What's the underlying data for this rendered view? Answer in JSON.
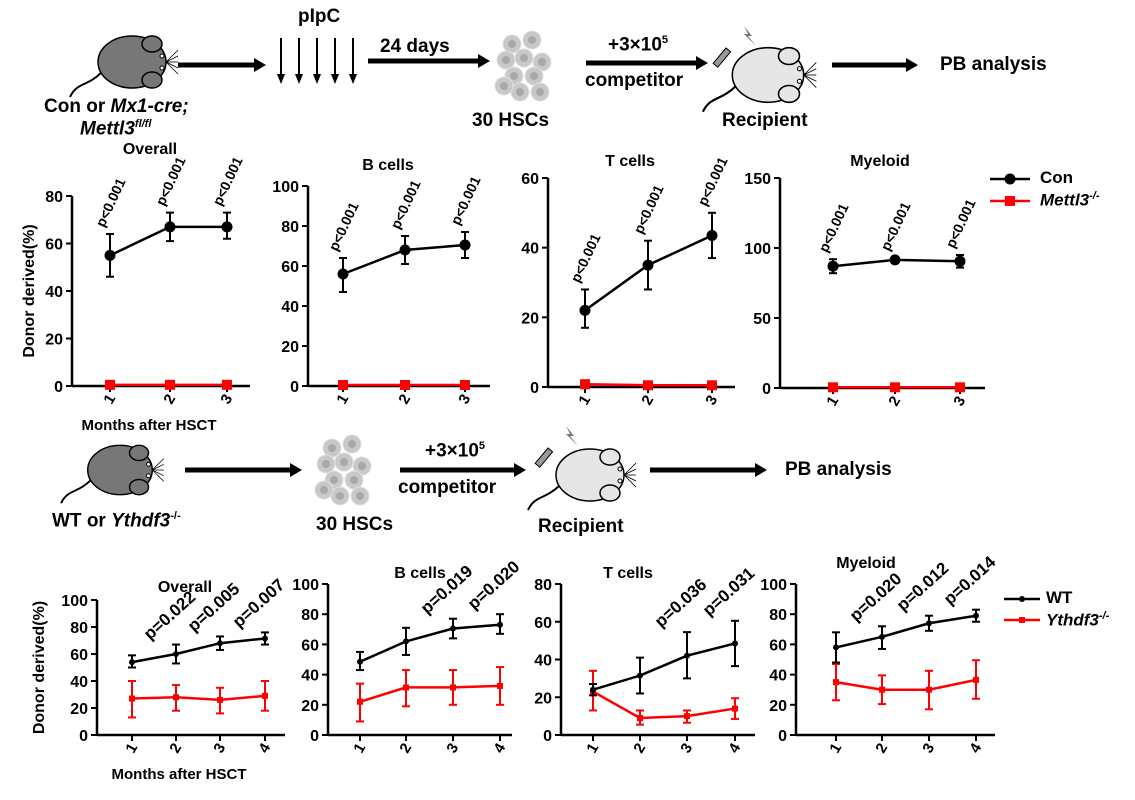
{
  "diagram_top": {
    "donor_label_1": "Con or ",
    "donor_label_1_italic": "Mx1-cre;",
    "donor_label_2_italic": "Mettl3",
    "donor_label_2_sup": "fl/fl",
    "injection": "pIpC",
    "wait": "24 days",
    "hscs": "30 HSCs",
    "competitor_count": "+3×10",
    "competitor_exp": "5",
    "competitor": "competitor",
    "recipient": "Recipient",
    "analysis": "PB analysis"
  },
  "diagram_bottom": {
    "donor_label": "WT or ",
    "donor_label_italic": "Ythdf3",
    "donor_label_sup": "-/-",
    "hscs": "30 HSCs",
    "competitor_count": "+3×10",
    "competitor_exp": "5",
    "competitor": "competitor",
    "recipient": "Recipient",
    "analysis": "PB analysis"
  },
  "legends": {
    "top": [
      {
        "name": "Con",
        "color": "#000000"
      },
      {
        "name": "Mettl3",
        "sup": "-/-",
        "color": "#ff0000"
      }
    ],
    "bottom": [
      {
        "name": "WT",
        "color": "#000000"
      },
      {
        "name": "Ythdf3",
        "sup": "-/-",
        "color": "#ff0000"
      }
    ]
  },
  "chart_data": [
    {
      "type": "line",
      "title": "Overall",
      "ylabel": "Donor derived(%)",
      "xlabel": "Months after HSCT",
      "x": [
        1,
        2,
        3
      ],
      "ylim": [
        0,
        80
      ],
      "yticks": [
        0,
        20,
        40,
        60,
        80
      ],
      "grid": false,
      "series": [
        {
          "name": "Con",
          "color": "#000000",
          "values": [
            55,
            67,
            67
          ],
          "err_low": [
            46,
            61,
            62
          ],
          "err_high": [
            64,
            73,
            73
          ]
        },
        {
          "name": "Mettl3-/-",
          "color": "#ff0000",
          "values": [
            0.5,
            0.5,
            0.5
          ],
          "err_low": [
            0.5,
            0.5,
            0.5
          ],
          "err_high": [
            0.5,
            0.5,
            0.5
          ]
        }
      ],
      "annotations": [
        "p<0.001",
        "p<0.001",
        "p<0.001"
      ]
    },
    {
      "type": "line",
      "title": "B cells",
      "x": [
        1,
        2,
        3
      ],
      "ylim": [
        0,
        100
      ],
      "yticks": [
        0,
        20,
        40,
        60,
        80,
        100
      ],
      "series": [
        {
          "name": "Con",
          "color": "#000000",
          "values": [
            56,
            68,
            70.5
          ],
          "err_low": [
            47,
            61,
            64
          ],
          "err_high": [
            64,
            75,
            77
          ]
        },
        {
          "name": "Mettl3-/-",
          "color": "#ff0000",
          "values": [
            0.5,
            0.5,
            0.5
          ],
          "err_low": [
            0.5,
            0.5,
            0.5
          ],
          "err_high": [
            0.5,
            0.5,
            0.5
          ]
        }
      ],
      "annotations": [
        "p<0.001",
        "p<0.001",
        "p<0.001"
      ]
    },
    {
      "type": "line",
      "title": "T cells",
      "x": [
        1,
        2,
        3
      ],
      "ylim": [
        0,
        60
      ],
      "yticks": [
        0,
        20,
        40,
        60
      ],
      "series": [
        {
          "name": "Con",
          "color": "#000000",
          "values": [
            22,
            35,
            43.5
          ],
          "err_low": [
            17,
            28,
            37
          ],
          "err_high": [
            28,
            42,
            50
          ]
        },
        {
          "name": "Mettl3-/-",
          "color": "#ff0000",
          "values": [
            0.8,
            0.5,
            0.5
          ],
          "err_low": [
            0.5,
            0.3,
            0.3
          ],
          "err_high": [
            1,
            0.8,
            0.8
          ]
        }
      ],
      "annotations": [
        "p<0.001",
        "p<0.001",
        "p<0.001"
      ]
    },
    {
      "type": "line",
      "title": "Myeloid",
      "x": [
        1,
        2,
        3
      ],
      "ylim": [
        0,
        150
      ],
      "yticks": [
        0,
        50,
        100,
        150
      ],
      "series": [
        {
          "name": "Con",
          "color": "#000000",
          "values": [
            87,
            91.5,
            90.5
          ],
          "err_low": [
            82,
            90,
            86
          ],
          "err_high": [
            92,
            93,
            95
          ]
        },
        {
          "name": "Mettl3-/-",
          "color": "#ff0000",
          "values": [
            0.5,
            0.5,
            0.5
          ],
          "err_low": [
            0.5,
            0.5,
            0.5
          ],
          "err_high": [
            0.5,
            0.5,
            0.5
          ]
        }
      ],
      "annotations": [
        "p<0.001",
        "p<0.001",
        "p<0.001"
      ]
    },
    {
      "type": "line",
      "title": "Overall",
      "ylabel": "Donor derived(%)",
      "xlabel": "Months after HSCT",
      "x": [
        1,
        2,
        3,
        4
      ],
      "ylim": [
        0,
        100
      ],
      "yticks": [
        0,
        20,
        40,
        60,
        80,
        100
      ],
      "series": [
        {
          "name": "WT",
          "color": "#000000",
          "values": [
            54,
            60,
            68,
            71.5
          ],
          "err_low": [
            50,
            53,
            63,
            67
          ],
          "err_high": [
            59,
            67,
            73,
            76
          ]
        },
        {
          "name": "Ythdf3-/-",
          "color": "#ff0000",
          "values": [
            27,
            28,
            26,
            29
          ],
          "err_low": [
            13,
            18,
            16,
            18
          ],
          "err_high": [
            40,
            37,
            35,
            40
          ]
        }
      ],
      "annotations": [
        "",
        "p=0.022",
        "p=0.005",
        "p=0.007"
      ]
    },
    {
      "type": "line",
      "title": "B cells",
      "x": [
        1,
        2,
        3,
        4
      ],
      "ylim": [
        0,
        100
      ],
      "yticks": [
        0,
        20,
        40,
        60,
        80,
        100
      ],
      "series": [
        {
          "name": "WT",
          "color": "#000000",
          "values": [
            48.5,
            62,
            70.5,
            73
          ],
          "err_low": [
            43,
            53,
            64,
            67
          ],
          "err_high": [
            55,
            71,
            77,
            80
          ]
        },
        {
          "name": "Ythdf3-/-",
          "color": "#ff0000",
          "values": [
            22,
            31.5,
            31.5,
            32.5
          ],
          "err_low": [
            9,
            19,
            20,
            20
          ],
          "err_high": [
            34,
            43,
            43,
            45
          ]
        }
      ],
      "annotations": [
        "",
        "",
        "p=0.019",
        "p=0.020"
      ]
    },
    {
      "type": "line",
      "title": "T cells",
      "x": [
        1,
        2,
        3,
        4
      ],
      "ylim": [
        0,
        80
      ],
      "yticks": [
        0,
        20,
        40,
        60,
        80
      ],
      "series": [
        {
          "name": "WT",
          "color": "#000000",
          "values": [
            24,
            31.5,
            42,
            48.5
          ],
          "err_low": [
            21,
            22,
            30,
            36.5
          ],
          "err_high": [
            27,
            41,
            54.5,
            60.5
          ]
        },
        {
          "name": "Ythdf3-/-",
          "color": "#ff0000",
          "values": [
            23,
            9,
            10,
            14
          ],
          "err_low": [
            13,
            5.5,
            6.5,
            8.5
          ],
          "err_high": [
            34,
            13,
            13,
            19.5
          ]
        }
      ],
      "annotations": [
        "",
        "",
        "p=0.036",
        "p=0.031"
      ]
    },
    {
      "type": "line",
      "title": "Myeloid",
      "x": [
        1,
        2,
        3,
        4
      ],
      "ylim": [
        0,
        100
      ],
      "yticks": [
        0,
        20,
        40,
        60,
        80,
        100
      ],
      "series": [
        {
          "name": "WT",
          "color": "#000000",
          "values": [
            58,
            65,
            74,
            79
          ],
          "err_low": [
            48,
            57,
            69,
            75
          ],
          "err_high": [
            68,
            72,
            79,
            83
          ]
        },
        {
          "name": "Ythdf3-/-",
          "color": "#ff0000",
          "values": [
            35,
            30,
            30,
            36.5
          ],
          "err_low": [
            23,
            20.5,
            17,
            24
          ],
          "err_high": [
            47,
            39.5,
            42.5,
            49.5
          ]
        }
      ],
      "annotations": [
        "",
        "p=0.020",
        "p=0.012",
        "p=0.014"
      ]
    }
  ]
}
